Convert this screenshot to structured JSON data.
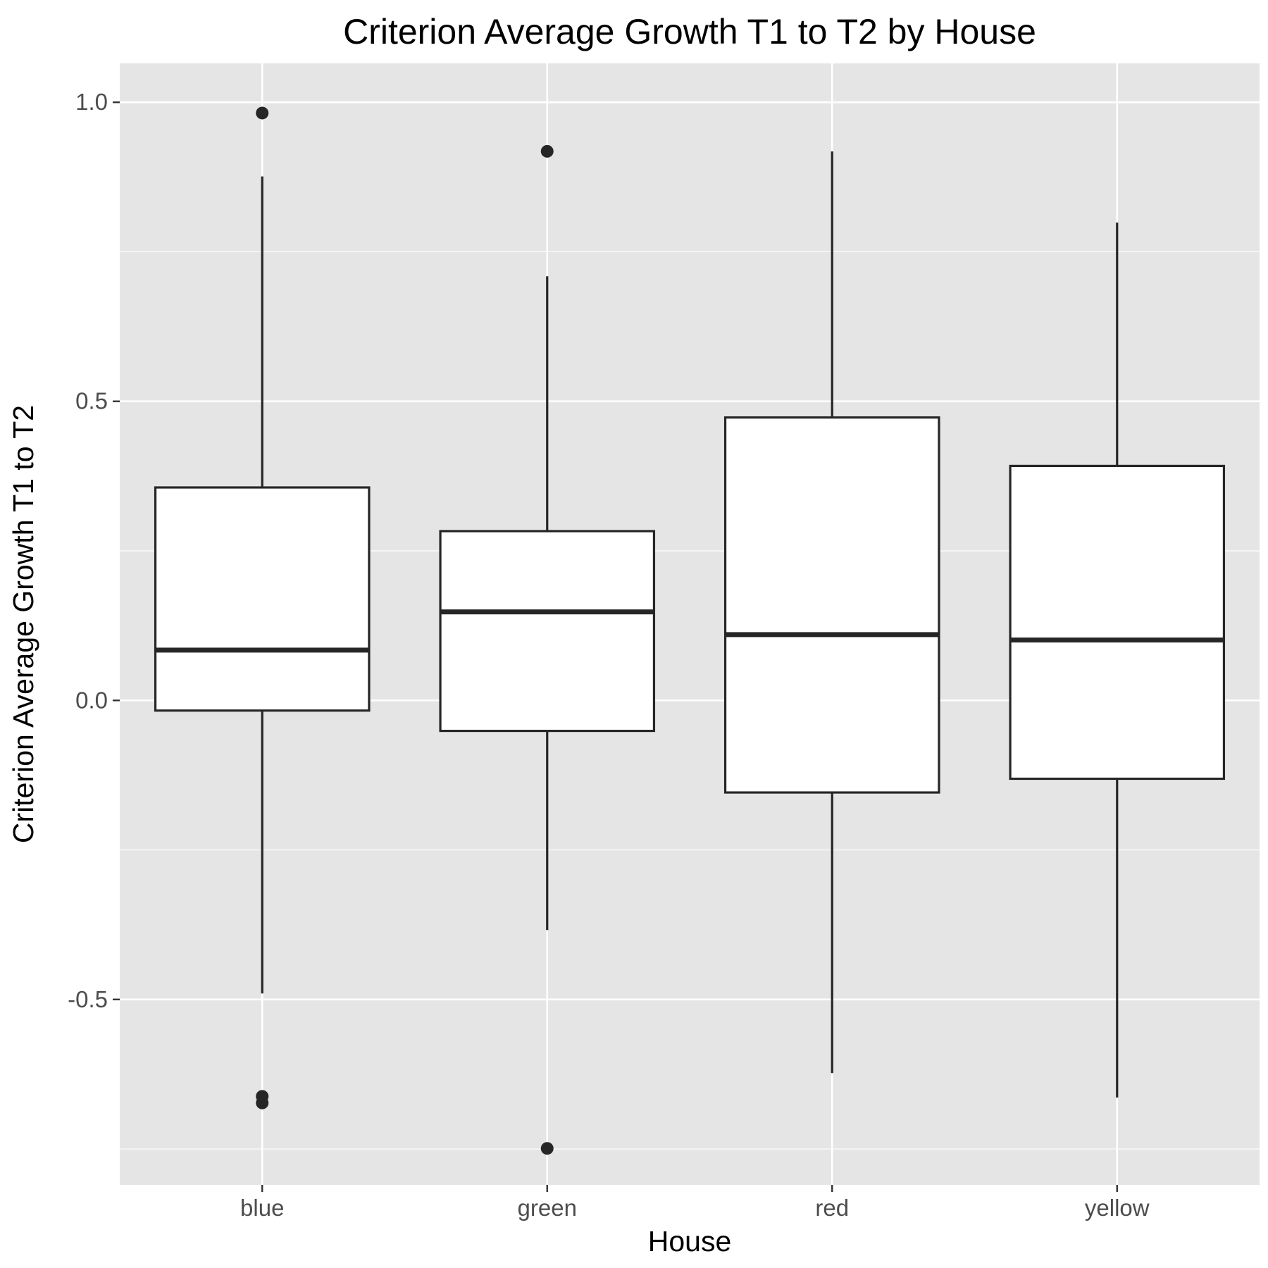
{
  "chart_data": {
    "type": "boxplot",
    "title": "Criterion Average Growth T1 to T2 by House",
    "xlabel": "House",
    "ylabel": "Criterion Average Growth T1 to T2",
    "categories": [
      "blue",
      "green",
      "red",
      "yellow"
    ],
    "ylim": [
      -0.81,
      1.065
    ],
    "y_ticks": [
      -0.5,
      0.0,
      0.5,
      1.0
    ],
    "y_tick_labels": [
      "-0.5",
      "0.0",
      "0.5",
      "1.0"
    ],
    "y_minor_ticks": [
      -0.75,
      -0.25,
      0.25,
      0.75
    ],
    "grid": true,
    "boxes": [
      {
        "category": "blue",
        "whisker_low": -0.49,
        "q1": -0.017,
        "median": 0.084,
        "q3": 0.356,
        "whisker_high": 0.876,
        "outliers": [
          0.982,
          -0.662,
          -0.673
        ]
      },
      {
        "category": "green",
        "whisker_low": -0.384,
        "q1": -0.051,
        "median": 0.148,
        "q3": 0.283,
        "whisker_high": 0.709,
        "outliers": [
          0.918,
          -0.749
        ]
      },
      {
        "category": "red",
        "whisker_low": -0.623,
        "q1": -0.154,
        "median": 0.11,
        "q3": 0.473,
        "whisker_high": 0.918,
        "outliers": []
      },
      {
        "category": "yellow",
        "whisker_low": -0.664,
        "q1": -0.131,
        "median": 0.101,
        "q3": 0.392,
        "whisker_high": 0.799,
        "outliers": []
      }
    ],
    "colors": {
      "panel_background": "#e5e5e5",
      "grid": "#ffffff",
      "box_fill": "#ffffff",
      "box_stroke": "#262626",
      "tick_label": "#4d4d4d",
      "text": "#000000"
    }
  }
}
